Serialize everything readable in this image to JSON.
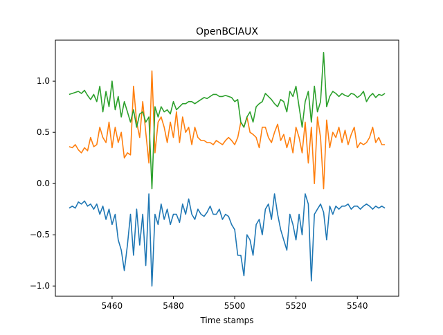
{
  "chart_data": {
    "type": "line",
    "title": "OpenBCIAUX",
    "xlabel": "Time stamps",
    "ylabel": "",
    "xlim": [
      5544.5,
      5551
    ],
    "ylim": [
      -1.1,
      1.4
    ],
    "grid": false,
    "legend": "none",
    "xticks": [
      5460,
      5480,
      5500,
      5520,
      5540
    ],
    "xtick_labels": [
      "5460",
      "5480",
      "5500",
      "5520",
      "5540"
    ],
    "yticks": [
      -1.0,
      -0.5,
      0.0,
      0.5,
      1.0
    ],
    "ytick_labels": [
      "−1.0",
      "−0.5",
      "0.0",
      "0.5",
      "1.0"
    ],
    "colors": {
      "blue": "#1f77b4",
      "orange": "#ff7f0e",
      "green": "#2ca02c"
    },
    "series": [
      {
        "color": "#1f77b4",
        "x": [
          5446,
          5447,
          5448,
          5449,
          5450,
          5451,
          5452,
          5453,
          5454,
          5455,
          5456,
          5457,
          5458,
          5459,
          5460,
          5461,
          5462,
          5463,
          5464,
          5465,
          5466,
          5467,
          5468,
          5469,
          5470,
          5471,
          5472,
          5473,
          5474,
          5475,
          5476,
          5477,
          5478,
          5479,
          5480,
          5481,
          5482,
          5483,
          5484,
          5485,
          5486,
          5487,
          5488,
          5489,
          5490,
          5491,
          5492,
          5493,
          5494,
          5495,
          5496,
          5497,
          5498,
          5499,
          5500,
          5501,
          5502,
          5503,
          5504,
          5505,
          5506,
          5507,
          5508,
          5509,
          5510,
          5511,
          5512,
          5513,
          5514,
          5515,
          5516,
          5517,
          5518,
          5519,
          5520,
          5521,
          5522,
          5523,
          5524,
          5525,
          5526,
          5527,
          5528,
          5529,
          5530,
          5531,
          5532,
          5533,
          5534,
          5535,
          5536,
          5537,
          5538,
          5539,
          5540,
          5541,
          5542,
          5543,
          5544,
          5545,
          5546,
          5547,
          5548,
          5549
        ],
        "y": [
          -0.24,
          -0.22,
          -0.24,
          -0.18,
          -0.2,
          -0.17,
          -0.22,
          -0.2,
          -0.25,
          -0.2,
          -0.3,
          -0.22,
          -0.35,
          -0.25,
          -0.4,
          -0.3,
          -0.55,
          -0.65,
          -0.85,
          -0.6,
          -0.3,
          -0.7,
          -0.25,
          -0.6,
          -0.3,
          -0.8,
          -0.1,
          -1.0,
          -0.3,
          -0.4,
          -0.2,
          -0.35,
          -0.25,
          -0.4,
          -0.3,
          -0.3,
          -0.38,
          -0.2,
          -0.3,
          -0.15,
          -0.3,
          -0.35,
          -0.25,
          -0.3,
          -0.32,
          -0.28,
          -0.22,
          -0.3,
          -0.3,
          -0.25,
          -0.35,
          -0.3,
          -0.32,
          -0.4,
          -0.45,
          -0.7,
          -0.7,
          -0.9,
          -0.5,
          -0.55,
          -0.7,
          -0.4,
          -0.35,
          -0.5,
          -0.25,
          -0.2,
          -0.35,
          -0.1,
          -0.3,
          -0.45,
          -0.55,
          -0.65,
          -0.3,
          -0.4,
          -0.55,
          -0.3,
          -0.5,
          -0.1,
          -0.2,
          -0.95,
          -0.3,
          -0.25,
          -0.2,
          -0.28,
          -0.55,
          -0.22,
          -0.3,
          -0.22,
          -0.25,
          -0.22,
          -0.22,
          -0.2,
          -0.25,
          -0.22,
          -0.22,
          -0.25,
          -0.22,
          -0.2,
          -0.22,
          -0.25,
          -0.22,
          -0.24,
          -0.22,
          -0.24
        ]
      },
      {
        "color": "#ff7f0e",
        "x": [
          5446,
          5447,
          5448,
          5449,
          5450,
          5451,
          5452,
          5453,
          5454,
          5455,
          5456,
          5457,
          5458,
          5459,
          5460,
          5461,
          5462,
          5463,
          5464,
          5465,
          5466,
          5467,
          5468,
          5469,
          5470,
          5471,
          5472,
          5473,
          5474,
          5475,
          5476,
          5477,
          5478,
          5479,
          5480,
          5481,
          5482,
          5483,
          5484,
          5485,
          5486,
          5487,
          5488,
          5489,
          5490,
          5491,
          5492,
          5493,
          5494,
          5495,
          5496,
          5497,
          5498,
          5499,
          5500,
          5501,
          5502,
          5503,
          5504,
          5505,
          5506,
          5507,
          5508,
          5509,
          5510,
          5511,
          5512,
          5513,
          5514,
          5515,
          5516,
          5517,
          5518,
          5519,
          5520,
          5521,
          5522,
          5523,
          5524,
          5525,
          5526,
          5527,
          5528,
          5529,
          5530,
          5531,
          5532,
          5533,
          5534,
          5535,
          5536,
          5537,
          5538,
          5539,
          5540,
          5541,
          5542,
          5543,
          5544,
          5545,
          5546,
          5547,
          5548,
          5549
        ],
        "y": [
          0.36,
          0.35,
          0.38,
          0.33,
          0.3,
          0.35,
          0.32,
          0.45,
          0.36,
          0.38,
          0.55,
          0.45,
          0.4,
          0.6,
          0.35,
          0.55,
          0.4,
          0.5,
          0.25,
          0.3,
          0.28,
          0.95,
          0.6,
          0.45,
          0.8,
          0.5,
          0.2,
          1.1,
          0.3,
          0.6,
          0.65,
          0.55,
          0.4,
          0.6,
          0.45,
          0.7,
          0.4,
          0.65,
          0.5,
          0.55,
          0.38,
          0.55,
          0.45,
          0.42,
          0.42,
          0.4,
          0.4,
          0.38,
          0.42,
          0.4,
          0.38,
          0.42,
          0.45,
          0.42,
          0.38,
          0.45,
          0.6,
          0.55,
          0.65,
          0.5,
          0.48,
          0.45,
          0.35,
          0.55,
          0.55,
          0.45,
          0.4,
          0.5,
          0.58,
          0.42,
          0.48,
          0.35,
          0.45,
          0.3,
          0.55,
          0.45,
          0.3,
          0.6,
          0.2,
          0.55,
          0.0,
          0.65,
          0.45,
          -0.05,
          0.62,
          0.35,
          0.5,
          0.45,
          0.55,
          0.4,
          0.52,
          0.38,
          0.48,
          0.55,
          0.35,
          0.4,
          0.38,
          0.4,
          0.45,
          0.55,
          0.4,
          0.45,
          0.38,
          0.38
        ]
      },
      {
        "color": "#2ca02c",
        "x": [
          5446,
          5447,
          5448,
          5449,
          5450,
          5451,
          5452,
          5453,
          5454,
          5455,
          5456,
          5457,
          5458,
          5459,
          5460,
          5461,
          5462,
          5463,
          5464,
          5465,
          5466,
          5467,
          5468,
          5469,
          5470,
          5471,
          5472,
          5473,
          5474,
          5475,
          5476,
          5477,
          5478,
          5479,
          5480,
          5481,
          5482,
          5483,
          5484,
          5485,
          5486,
          5487,
          5488,
          5489,
          5490,
          5491,
          5492,
          5493,
          5494,
          5495,
          5496,
          5497,
          5498,
          5499,
          5500,
          5501,
          5502,
          5503,
          5504,
          5505,
          5506,
          5507,
          5508,
          5509,
          5510,
          5511,
          5512,
          5513,
          5514,
          5515,
          5516,
          5517,
          5518,
          5519,
          5520,
          5521,
          5522,
          5523,
          5524,
          5525,
          5526,
          5527,
          5528,
          5529,
          5530,
          5531,
          5532,
          5533,
          5534,
          5535,
          5536,
          5537,
          5538,
          5539,
          5540,
          5541,
          5542,
          5543,
          5544,
          5545,
          5546,
          5547,
          5548,
          5549
        ],
        "y": [
          0.87,
          0.88,
          0.89,
          0.9,
          0.88,
          0.91,
          0.86,
          0.82,
          0.87,
          0.8,
          0.95,
          0.7,
          0.9,
          0.75,
          1.0,
          0.72,
          0.85,
          0.65,
          0.8,
          0.7,
          0.6,
          0.72,
          0.55,
          0.68,
          0.7,
          0.6,
          0.65,
          -0.05,
          0.75,
          0.65,
          0.75,
          0.7,
          0.72,
          0.68,
          0.8,
          0.72,
          0.75,
          0.78,
          0.78,
          0.8,
          0.8,
          0.78,
          0.8,
          0.82,
          0.84,
          0.83,
          0.85,
          0.87,
          0.87,
          0.85,
          0.85,
          0.86,
          0.85,
          0.84,
          0.8,
          0.82,
          0.6,
          0.55,
          0.65,
          0.7,
          0.6,
          0.75,
          0.78,
          0.8,
          0.88,
          0.85,
          0.82,
          0.78,
          0.75,
          0.82,
          0.8,
          0.7,
          0.9,
          0.85,
          0.95,
          0.75,
          0.55,
          0.8,
          0.9,
          0.6,
          0.95,
          0.7,
          0.8,
          1.28,
          0.75,
          0.85,
          0.9,
          0.88,
          0.85,
          0.88,
          0.86,
          0.85,
          0.88,
          0.87,
          0.84,
          0.86,
          0.9,
          0.8,
          0.85,
          0.88,
          0.84,
          0.87,
          0.86,
          0.88
        ]
      }
    ]
  }
}
